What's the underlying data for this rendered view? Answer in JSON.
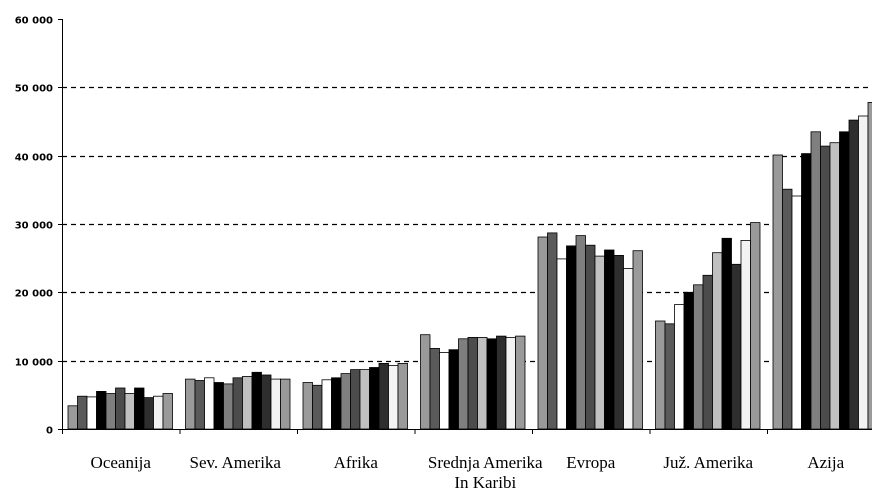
{
  "chart_data": {
    "type": "bar",
    "title": "",
    "xlabel": "",
    "ylabel": "",
    "ylim": [
      0,
      60000
    ],
    "yticks": [
      {
        "value": 0,
        "label": "0"
      },
      {
        "value": 10000,
        "label": "10 000"
      },
      {
        "value": 20000,
        "label": "20 000"
      },
      {
        "value": 30000,
        "label": "30 000"
      },
      {
        "value": 40000,
        "label": "40 000"
      },
      {
        "value": 50000,
        "label": "50 000"
      },
      {
        "value": 60000,
        "label": "60 000"
      }
    ],
    "grid": "horizontal dashed at 10 000, 20 000, 30 000, 40 000, 50 000",
    "legend": "none",
    "categories": [
      [
        "Oceanija"
      ],
      [
        "Sev. Amerika"
      ],
      [
        "Afrika"
      ],
      [
        "Srednja Amerika",
        "In Karibi"
      ],
      [
        "Evropa"
      ],
      [
        "Juž. Amerika"
      ],
      [
        "Azija"
      ]
    ],
    "bar_colors": [
      "#9a9a9a",
      "#5a5a5a",
      "#ffffff",
      "#000000",
      "#7f7f7f",
      "#4c4c4c",
      "#c0c0c0",
      "#000000",
      "#2e2e2e",
      "#f3f3f3"
    ],
    "values": [
      [
        3400,
        4800,
        4700,
        5500,
        5200,
        6000,
        5200,
        6000,
        4600,
        4800,
        5200
      ],
      [
        7300,
        7100,
        7500,
        6800,
        6600,
        7500,
        7700,
        8300,
        7900,
        7300,
        7300
      ],
      [
        6800,
        6400,
        7200,
        7500,
        8100,
        8700,
        8700,
        9000,
        9600,
        9300,
        9600
      ],
      [
        13800,
        11800,
        11200,
        11600,
        13200,
        13400,
        13400,
        13200,
        13600,
        13400,
        13600
      ],
      [
        28100,
        28700,
        24900,
        26800,
        28300,
        26900,
        25300,
        26200,
        25400,
        23500,
        26100
      ],
      [
        15800,
        15400,
        18200,
        20000,
        21100,
        22500,
        25800,
        27900,
        24100,
        27600,
        30200
      ],
      [
        40100,
        35100,
        34100,
        40300,
        43500,
        41400,
        41900,
        43500,
        45200,
        45800,
        47800
      ]
    ]
  }
}
